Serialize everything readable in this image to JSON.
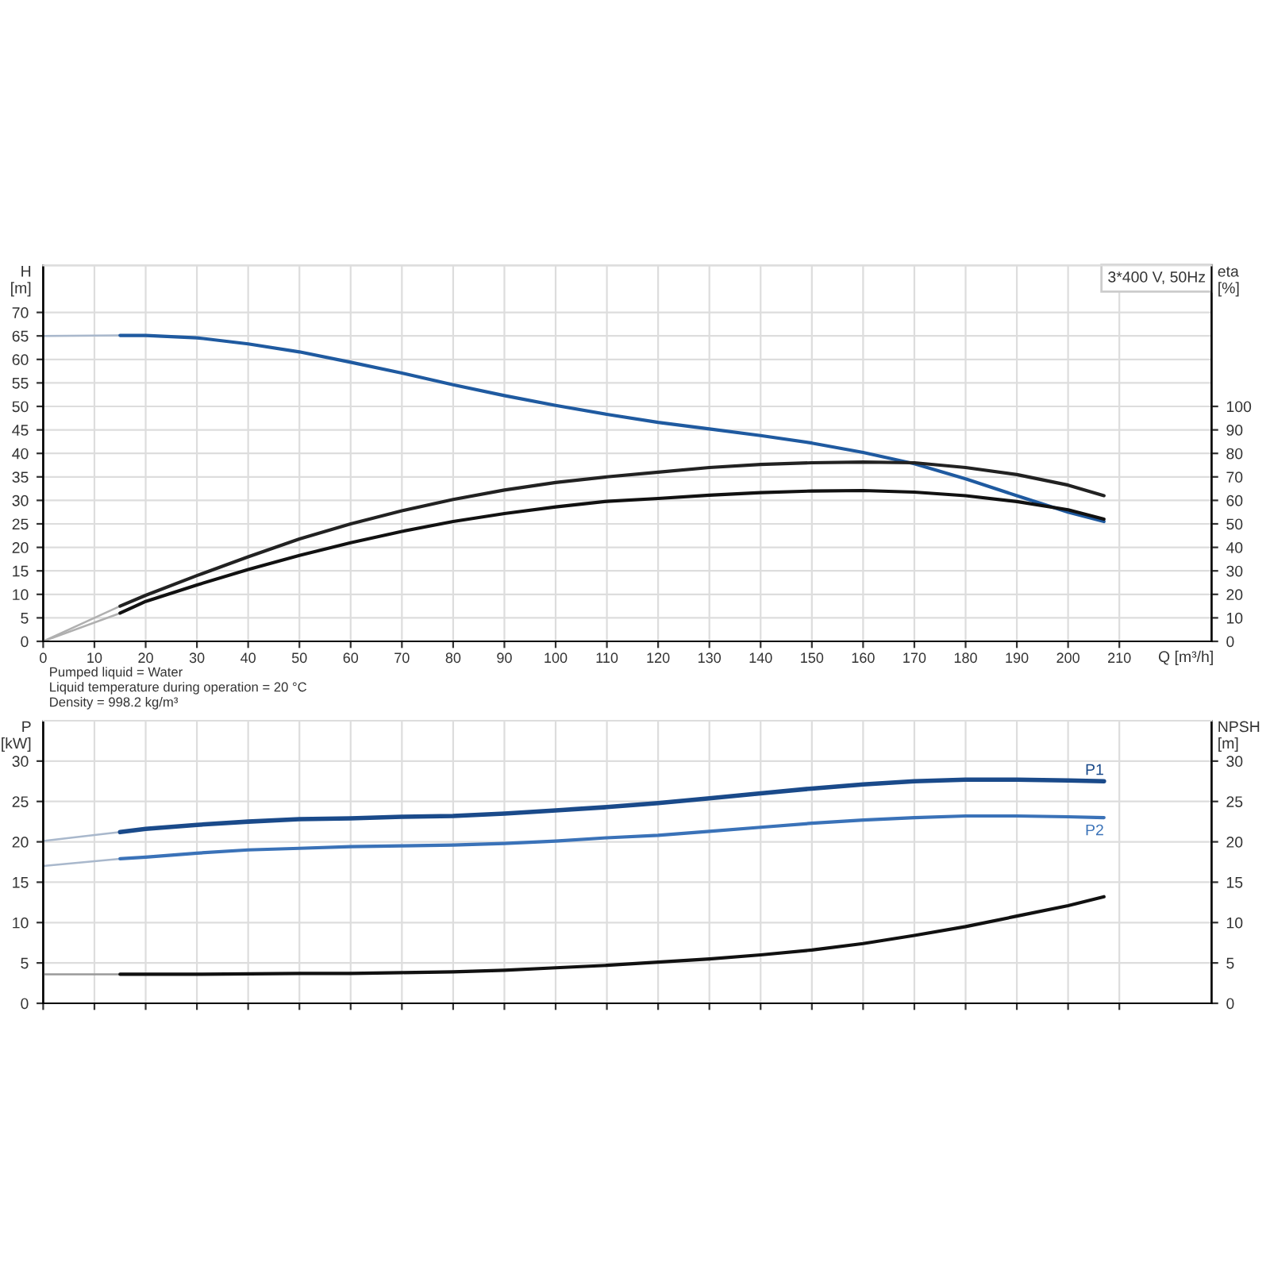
{
  "chart_data": [
    {
      "type": "line",
      "title": "3*400 V, 50Hz",
      "xlabel": "Q [m³/h]",
      "ylabel": "H\n[m]",
      "y2label": "eta\n[%]",
      "xlim": [
        0,
        228
      ],
      "xticks": [
        0,
        10,
        20,
        30,
        40,
        50,
        60,
        70,
        80,
        90,
        100,
        110,
        120,
        130,
        140,
        150,
        160,
        170,
        180,
        190,
        200,
        210
      ],
      "ylim": [
        0,
        80
      ],
      "yticks": [
        0,
        5,
        10,
        15,
        20,
        25,
        30,
        35,
        40,
        45,
        50,
        55,
        60,
        65,
        70
      ],
      "y2lim": [
        0,
        160
      ],
      "y2ticks": [
        0,
        10,
        20,
        30,
        40,
        50,
        60,
        70,
        80,
        90,
        100
      ],
      "grid": true,
      "annotations": [
        "Pumped liquid = Water",
        "Liquid temperature during operation = 20 °C",
        "Density = 998.2 kg/m³"
      ],
      "series": [
        {
          "color": "#a9b8cc",
          "x": [
            0,
            15
          ],
          "values": [
            65,
            65.1
          ]
        },
        {
          "color": "#1f5aa0",
          "x": [
            15,
            20,
            30,
            40,
            50,
            60,
            70,
            80,
            90,
            100,
            110,
            120,
            130,
            140,
            150,
            160,
            170,
            180,
            190,
            200,
            207
          ],
          "values": [
            65.1,
            65.1,
            64.6,
            63.3,
            61.6,
            59.4,
            57.1,
            54.6,
            52.3,
            50.2,
            48.3,
            46.6,
            45.2,
            43.8,
            42.2,
            40.2,
            37.8,
            34.6,
            31.0,
            27.5,
            25.5
          ]
        },
        {
          "color": "#b0b0b0",
          "axis": "y2",
          "x": [
            0,
            15
          ],
          "values": [
            0,
            15
          ]
        },
        {
          "color": "#222222",
          "axis": "y2",
          "x": [
            15,
            20,
            30,
            40,
            50,
            60,
            70,
            80,
            90,
            100,
            110,
            120,
            130,
            140,
            150,
            160,
            170,
            180,
            190,
            200,
            207
          ],
          "values": [
            15,
            19.6,
            28,
            36,
            43.6,
            50,
            55.6,
            60.4,
            64.4,
            67.6,
            70,
            72,
            74,
            75.3,
            76,
            76.3,
            76,
            74,
            71,
            66.5,
            62
          ]
        },
        {
          "color": "#b0b0b0",
          "axis": "y2",
          "x": [
            0,
            15
          ],
          "values": [
            0,
            12
          ]
        },
        {
          "color": "#111111",
          "axis": "y2",
          "x": [
            15,
            20,
            30,
            40,
            50,
            60,
            70,
            80,
            90,
            100,
            110,
            120,
            130,
            140,
            150,
            160,
            170,
            180,
            190,
            200,
            207
          ],
          "values": [
            12,
            17,
            24,
            30.6,
            36.6,
            42,
            46.8,
            51,
            54.4,
            57.2,
            59.6,
            60.8,
            62.2,
            63.3,
            64,
            64.2,
            63.5,
            62,
            59.5,
            56,
            52
          ]
        }
      ]
    },
    {
      "type": "line",
      "ylabel": "P\n[kW]",
      "y2label": "NPSH\n[m]",
      "xlim": [
        0,
        228
      ],
      "xticks": [
        0,
        10,
        20,
        30,
        40,
        50,
        60,
        70,
        80,
        90,
        100,
        110,
        120,
        130,
        140,
        150,
        160,
        170,
        180,
        190,
        200,
        210
      ],
      "ylim": [
        0,
        35
      ],
      "yticks": [
        0,
        5,
        10,
        15,
        20,
        25,
        30
      ],
      "y2lim": [
        0,
        35
      ],
      "y2ticks": [
        0,
        5,
        10,
        15,
        20,
        25,
        30
      ],
      "grid": true,
      "tick_labels": "y",
      "series": [
        {
          "color": "#a9b8cc",
          "x": [
            0,
            15
          ],
          "values": [
            20.1,
            21.2
          ]
        },
        {
          "name": "P1",
          "color": "#1a4a8a",
          "x": [
            15,
            20,
            30,
            40,
            50,
            60,
            70,
            80,
            90,
            100,
            110,
            120,
            130,
            140,
            150,
            160,
            170,
            180,
            190,
            200,
            207
          ],
          "values": [
            21.2,
            21.6,
            22.1,
            22.5,
            22.8,
            22.9,
            23.1,
            23.2,
            23.5,
            23.9,
            24.3,
            24.8,
            25.4,
            26.0,
            26.6,
            27.1,
            27.5,
            27.7,
            27.7,
            27.6,
            27.5
          ]
        },
        {
          "color": "#a9b8cc",
          "x": [
            0,
            15
          ],
          "values": [
            17,
            17.9
          ]
        },
        {
          "name": "P2",
          "color": "#3a72b8",
          "x": [
            15,
            20,
            30,
            40,
            50,
            60,
            70,
            80,
            90,
            100,
            110,
            120,
            130,
            140,
            150,
            160,
            170,
            180,
            190,
            200,
            207
          ],
          "values": [
            17.9,
            18.1,
            18.6,
            19.0,
            19.2,
            19.4,
            19.5,
            19.6,
            19.8,
            20.1,
            20.5,
            20.8,
            21.3,
            21.8,
            22.3,
            22.7,
            23.0,
            23.2,
            23.2,
            23.1,
            23.0
          ]
        },
        {
          "color": "#999999",
          "axis": "y2",
          "x": [
            0,
            15
          ],
          "values": [
            3.6,
            3.6
          ]
        },
        {
          "color": "#111111",
          "axis": "y2",
          "x": [
            15,
            30,
            50,
            60,
            70,
            80,
            90,
            100,
            110,
            120,
            130,
            140,
            150,
            160,
            170,
            180,
            190,
            200,
            207
          ],
          "values": [
            3.6,
            3.6,
            3.7,
            3.7,
            3.8,
            3.9,
            4.1,
            4.4,
            4.7,
            5.1,
            5.5,
            6.0,
            6.6,
            7.4,
            8.4,
            9.5,
            10.8,
            12.1,
            13.2
          ]
        }
      ]
    }
  ]
}
